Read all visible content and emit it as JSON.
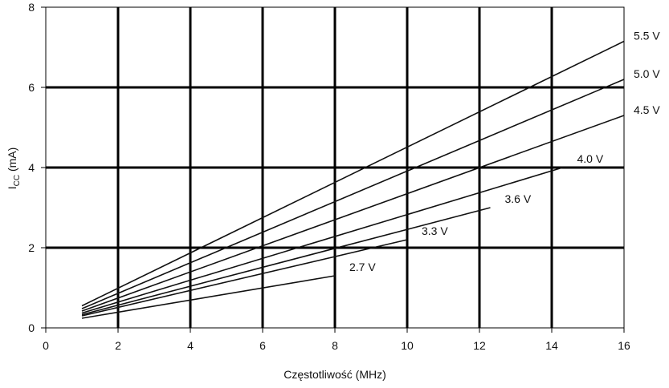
{
  "chart_data": {
    "type": "line",
    "title": "",
    "xlabel": "Częstotliwość (MHz)",
    "ylabel_main": "I",
    "ylabel_sub": "CC",
    "ylabel_unit": " (mA)",
    "xlim": [
      0,
      16
    ],
    "ylim": [
      0,
      8
    ],
    "xticks": [
      "0",
      "2",
      "4",
      "6",
      "8",
      "10",
      "12",
      "14",
      "16"
    ],
    "yticks": [
      "0",
      "2",
      "4",
      "6",
      "8"
    ],
    "grid": true,
    "legend": "inline-right",
    "series": [
      {
        "name": "5.5 V",
        "x": [
          1,
          16
        ],
        "y": [
          0.55,
          7.15
        ]
      },
      {
        "name": "5.0 V",
        "x": [
          1,
          16
        ],
        "y": [
          0.48,
          6.2
        ]
      },
      {
        "name": "4.5 V",
        "x": [
          1,
          16
        ],
        "y": [
          0.42,
          5.3
        ]
      },
      {
        "name": "4.0 V",
        "x": [
          1,
          14.3
        ],
        "y": [
          0.37,
          4.0
        ]
      },
      {
        "name": "3.6 V",
        "x": [
          1,
          12.3
        ],
        "y": [
          0.33,
          3.0
        ]
      },
      {
        "name": "3.3 V",
        "x": [
          1,
          10.0
        ],
        "y": [
          0.3,
          2.2
        ]
      },
      {
        "name": "2.7 V",
        "x": [
          1,
          8.0
        ],
        "y": [
          0.24,
          1.3
        ]
      }
    ]
  }
}
